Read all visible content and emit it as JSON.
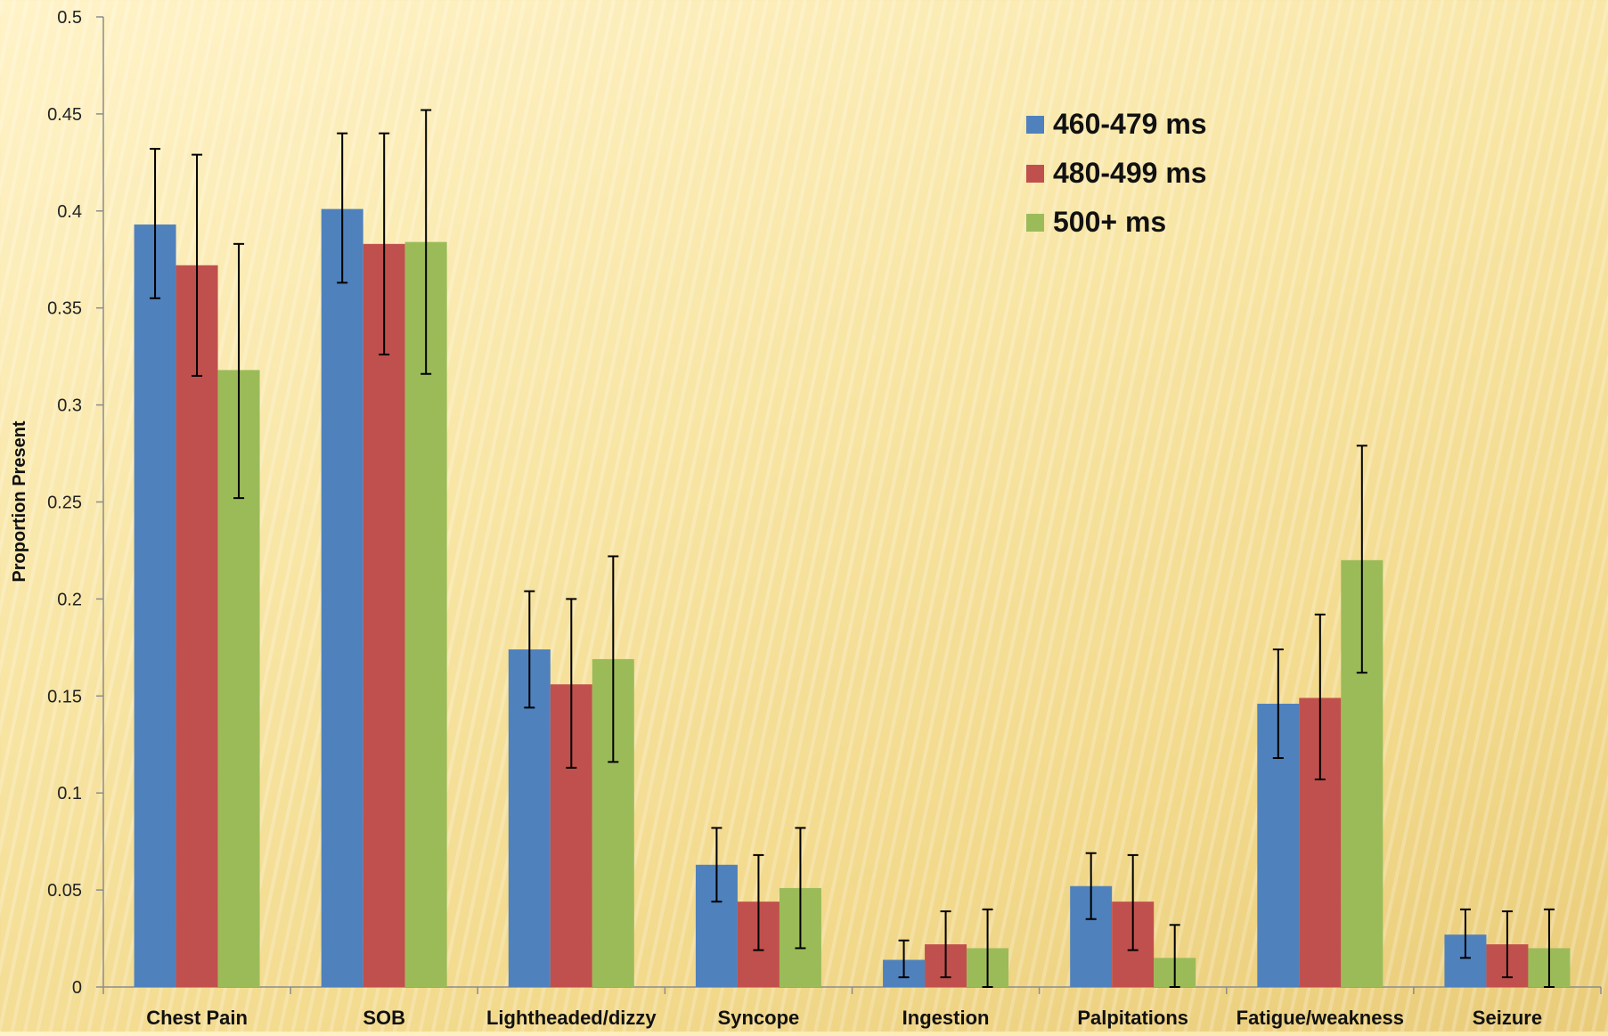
{
  "chart_data": {
    "type": "bar",
    "title": "",
    "xlabel": "",
    "ylabel": "Proportion Present",
    "ylim": [
      0,
      0.5
    ],
    "yticks": [
      "0",
      "0.05",
      "0.1",
      "0.15",
      "0.2",
      "0.25",
      "0.3",
      "0.35",
      "0.4",
      "0.45",
      "0.5"
    ],
    "categories": [
      "Chest Pain",
      "SOB",
      "Lightheaded/dizzy",
      "Syncope",
      "Ingestion",
      "Palpitations",
      "Fatigue/weakness",
      "Seizure"
    ],
    "series": [
      {
        "name": "460-479 ms",
        "color": "#4f81bd",
        "values": [
          0.393,
          0.401,
          0.174,
          0.063,
          0.014,
          0.052,
          0.146,
          0.027
        ],
        "err_low": [
          0.355,
          0.363,
          0.144,
          0.044,
          0.005,
          0.035,
          0.118,
          0.015
        ],
        "err_high": [
          0.432,
          0.44,
          0.204,
          0.082,
          0.024,
          0.069,
          0.174,
          0.04
        ]
      },
      {
        "name": "480-499 ms",
        "color": "#c0504d",
        "values": [
          0.372,
          0.383,
          0.156,
          0.044,
          0.022,
          0.044,
          0.149,
          0.022
        ],
        "err_low": [
          0.315,
          0.326,
          0.113,
          0.019,
          0.005,
          0.019,
          0.107,
          0.005
        ],
        "err_high": [
          0.429,
          0.44,
          0.2,
          0.068,
          0.039,
          0.068,
          0.192,
          0.039
        ]
      },
      {
        "name": "500+ ms",
        "color": "#9bbb59",
        "values": [
          0.318,
          0.384,
          0.169,
          0.051,
          0.02,
          0.015,
          0.22,
          0.02
        ],
        "err_low": [
          0.252,
          0.316,
          0.116,
          0.02,
          0.0,
          0.0,
          0.162,
          0.0
        ],
        "err_high": [
          0.383,
          0.452,
          0.222,
          0.082,
          0.04,
          0.032,
          0.279,
          0.04
        ]
      }
    ],
    "legend": "top-right",
    "error_bars": true,
    "grid": false
  }
}
